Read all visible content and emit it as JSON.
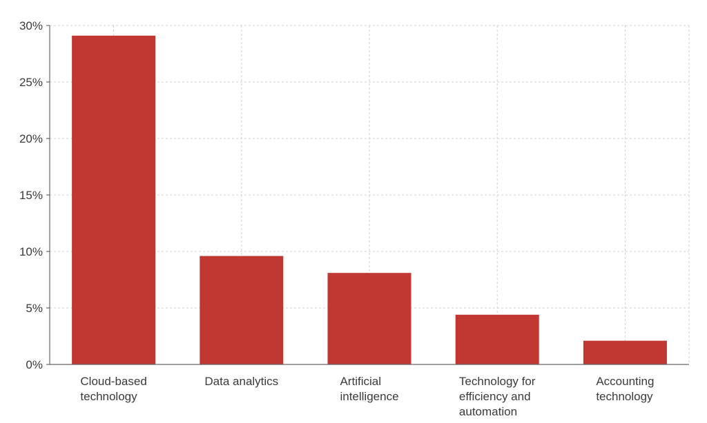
{
  "chart_data": {
    "type": "bar",
    "title": "",
    "xlabel": "",
    "ylabel": "",
    "categories": [
      [
        "Cloud-based",
        "technology"
      ],
      [
        "Data analytics"
      ],
      [
        "Artificial",
        "intelligence"
      ],
      [
        "Technology for",
        "efficiency and",
        "automation"
      ],
      [
        "Accounting",
        "technology"
      ]
    ],
    "values": [
      29.1,
      9.6,
      8.1,
      4.4,
      2.1
    ],
    "ylim": [
      0,
      30
    ],
    "yticks": [
      0,
      5,
      10,
      15,
      20,
      25,
      30
    ],
    "ytick_labels": [
      "0%",
      "5%",
      "10%",
      "15%",
      "20%",
      "25%",
      "30%"
    ],
    "grid": true,
    "bar_color": "#c03831"
  }
}
